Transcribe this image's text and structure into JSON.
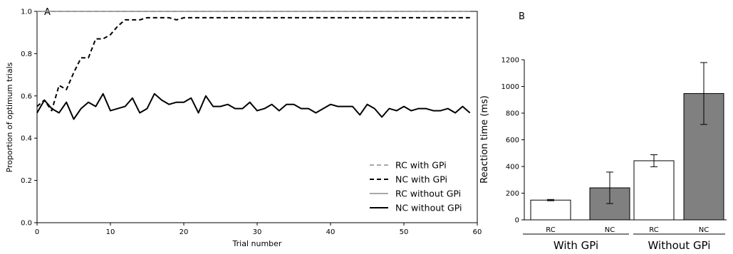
{
  "chart_data": [
    {
      "panel_label": "A",
      "type": "line",
      "xlabel": "Trial number",
      "ylabel": "Proportion of optimum trials",
      "xlim": [
        0,
        60
      ],
      "ylim": [
        0,
        1.0
      ],
      "xticks": [
        "0",
        "10",
        "20",
        "30",
        "40",
        "50",
        "60"
      ],
      "yticks": [
        "0.0",
        "0.2",
        "0.4",
        "0.6",
        "0.8",
        "1.0"
      ],
      "legend_position": "lower-right",
      "x": [
        0,
        1,
        2,
        3,
        4,
        5,
        6,
        7,
        8,
        9,
        10,
        11,
        12,
        13,
        14,
        15,
        16,
        17,
        18,
        19,
        20,
        21,
        22,
        23,
        24,
        25,
        26,
        27,
        28,
        29,
        30,
        31,
        32,
        33,
        34,
        35,
        36,
        37,
        38,
        39,
        40,
        41,
        42,
        43,
        44,
        45,
        46,
        47,
        48,
        49,
        50,
        51,
        52,
        53,
        54,
        55,
        56,
        57,
        58,
        59
      ],
      "series": [
        {
          "name": "RC with GPi",
          "style": "dashed",
          "color": "#8c8c8c",
          "values": [
            1,
            1,
            1,
            1,
            1,
            1,
            1,
            1,
            1,
            1,
            1,
            1,
            1,
            1,
            1,
            1,
            1,
            1,
            1,
            1,
            1,
            1,
            1,
            1,
            1,
            1,
            1,
            1,
            1,
            1,
            1,
            1,
            1,
            1,
            1,
            1,
            1,
            1,
            1,
            1,
            1,
            1,
            1,
            1,
            1,
            1,
            1,
            1,
            1,
            1,
            1,
            1,
            1,
            1,
            1,
            1,
            1,
            1,
            1,
            1
          ]
        },
        {
          "name": "NC with GPi",
          "style": "dashed",
          "color": "#000000",
          "values": [
            0.55,
            0.58,
            0.53,
            0.65,
            0.63,
            0.71,
            0.78,
            0.78,
            0.87,
            0.87,
            0.89,
            0.93,
            0.96,
            0.96,
            0.96,
            0.97,
            0.97,
            0.97,
            0.97,
            0.96,
            0.97,
            0.97,
            0.97,
            0.97,
            0.97,
            0.97,
            0.97,
            0.97,
            0.97,
            0.97,
            0.97,
            0.97,
            0.97,
            0.97,
            0.97,
            0.97,
            0.97,
            0.97,
            0.97,
            0.97,
            0.97,
            0.97,
            0.97,
            0.97,
            0.97,
            0.97,
            0.97,
            0.97,
            0.97,
            0.97,
            0.97,
            0.97,
            0.97,
            0.97,
            0.97,
            0.97,
            0.97,
            0.97,
            0.97,
            0.97
          ]
        },
        {
          "name": "RC without GPi",
          "style": "solid",
          "color": "#8c8c8c",
          "values": [
            1,
            1,
            1,
            1,
            1,
            1,
            1,
            1,
            1,
            1,
            1,
            1,
            1,
            1,
            1,
            1,
            1,
            1,
            1,
            1,
            1,
            1,
            1,
            1,
            1,
            1,
            1,
            1,
            1,
            1,
            1,
            1,
            1,
            1,
            1,
            1,
            1,
            1,
            1,
            1,
            1,
            1,
            1,
            1,
            1,
            1,
            1,
            1,
            1,
            1,
            1,
            1,
            1,
            1,
            1,
            1,
            1,
            1,
            1,
            1
          ]
        },
        {
          "name": "NC without GPi",
          "style": "solid",
          "color": "#000000",
          "values": [
            0.52,
            0.58,
            0.54,
            0.52,
            0.57,
            0.49,
            0.54,
            0.57,
            0.55,
            0.61,
            0.53,
            0.54,
            0.55,
            0.59,
            0.52,
            0.54,
            0.61,
            0.58,
            0.56,
            0.57,
            0.57,
            0.59,
            0.52,
            0.6,
            0.55,
            0.55,
            0.56,
            0.54,
            0.54,
            0.57,
            0.53,
            0.54,
            0.56,
            0.53,
            0.56,
            0.56,
            0.54,
            0.54,
            0.52,
            0.54,
            0.56,
            0.55,
            0.55,
            0.55,
            0.51,
            0.56,
            0.54,
            0.5,
            0.54,
            0.53,
            0.55,
            0.53,
            0.54,
            0.54,
            0.53,
            0.53,
            0.54,
            0.52,
            0.55,
            0.52
          ]
        }
      ]
    },
    {
      "panel_label": "B",
      "type": "bar",
      "ylabel": "Reaction time (ms)",
      "ylim": [
        0,
        1200
      ],
      "yticks": [
        "0",
        "200",
        "400",
        "600",
        "800",
        "1000",
        "1200"
      ],
      "categories": [
        "RC",
        "NC",
        "RC",
        "NC"
      ],
      "groups": [
        "With GPi",
        "Without GPi"
      ],
      "values": [
        148,
        240,
        443,
        947
      ],
      "errors": [
        5,
        118,
        45,
        232
      ],
      "bar_colors": [
        "#ffffff",
        "#808080",
        "#ffffff",
        "#808080"
      ]
    }
  ]
}
